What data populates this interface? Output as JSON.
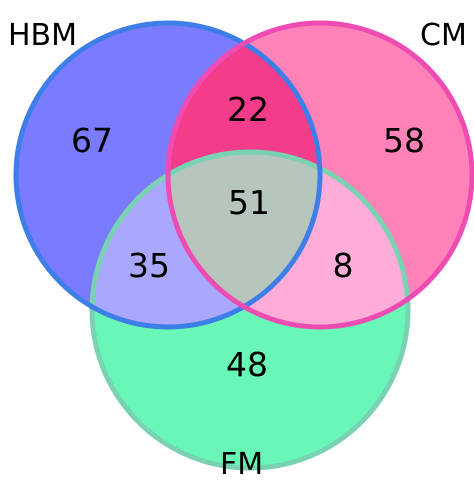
{
  "diagram": {
    "type": "venn-3",
    "sets": {
      "hbm": {
        "label": "HBM",
        "color": "#7b7bff",
        "stroke": "#3d7fe6"
      },
      "cm": {
        "label": "CM",
        "color": "#ff82b9",
        "stroke": "#ee4bb3"
      },
      "fm": {
        "label": "FM",
        "color": "#68f7b7",
        "stroke": "#79d2b2"
      }
    },
    "regions": {
      "hbm_only": "67",
      "cm_only": "58",
      "fm_only": "48",
      "hbm_cm": "22",
      "hbm_fm": "35",
      "cm_fm": "8",
      "all": "51"
    },
    "region_colors": {
      "hbm_cm": "#f33d8b",
      "hbm_fm": "#a9a8fd",
      "cm_fm": "#fdadd7",
      "all": "#b7c6bc"
    }
  }
}
